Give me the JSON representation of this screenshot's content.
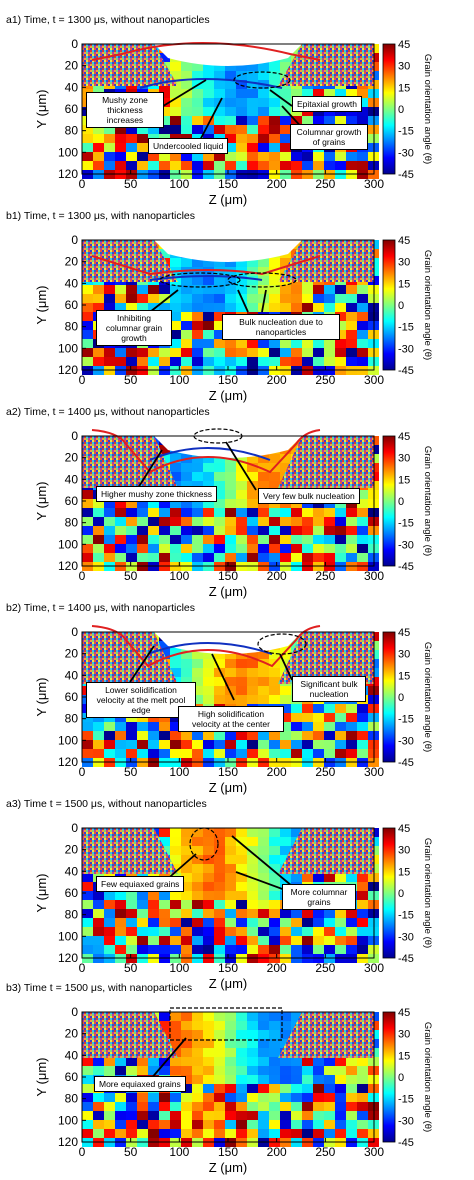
{
  "colorbar": {
    "label": "Grain orientation angle (θ)",
    "ticks": [
      "45",
      "30",
      "15",
      "0",
      "-15",
      "-30",
      "-45"
    ]
  },
  "axes": {
    "xlabel": "Z (μm)",
    "ylabel": "Y (μm)",
    "xticks": [
      "0",
      "50",
      "100",
      "150",
      "200",
      "250",
      "300"
    ],
    "yticks": [
      "0",
      "20",
      "40",
      "60",
      "80",
      "100",
      "120"
    ]
  },
  "panels": [
    {
      "title": "a1) Time, t = 1300 μs, without nanoparticles",
      "annotations": [
        "Mushy zone thickness increases",
        "Undercooled liquid",
        "Epitaxial growth",
        "Columnar growth of grains"
      ]
    },
    {
      "title": "b1) Time, t = 1300 μs, with nanoparticles",
      "annotations": [
        "Inhibiting columnar grain growth",
        "Bulk nucleation due to nanoparticles"
      ]
    },
    {
      "title": "a2) Time, t = 1400 μs, without nanoparticles",
      "annotations": [
        "Higher mushy zone thickness",
        "Very few bulk nucleation"
      ]
    },
    {
      "title": "b2) Time, t = 1400 μs, with nanoparticles",
      "annotations": [
        "Lower solidification velocity at the melt pool edge",
        "High solidification velocity at the center",
        "Significant bulk nucleation"
      ]
    },
    {
      "title": "a3) Time t = 1500 μs, without nanoparticles",
      "annotations": [
        "Few equiaxed grains",
        "More columnar grains"
      ]
    },
    {
      "title": "b3) Time t = 1500 μs, with nanoparticles",
      "annotations": [
        "More equiaxed grains"
      ]
    }
  ]
}
